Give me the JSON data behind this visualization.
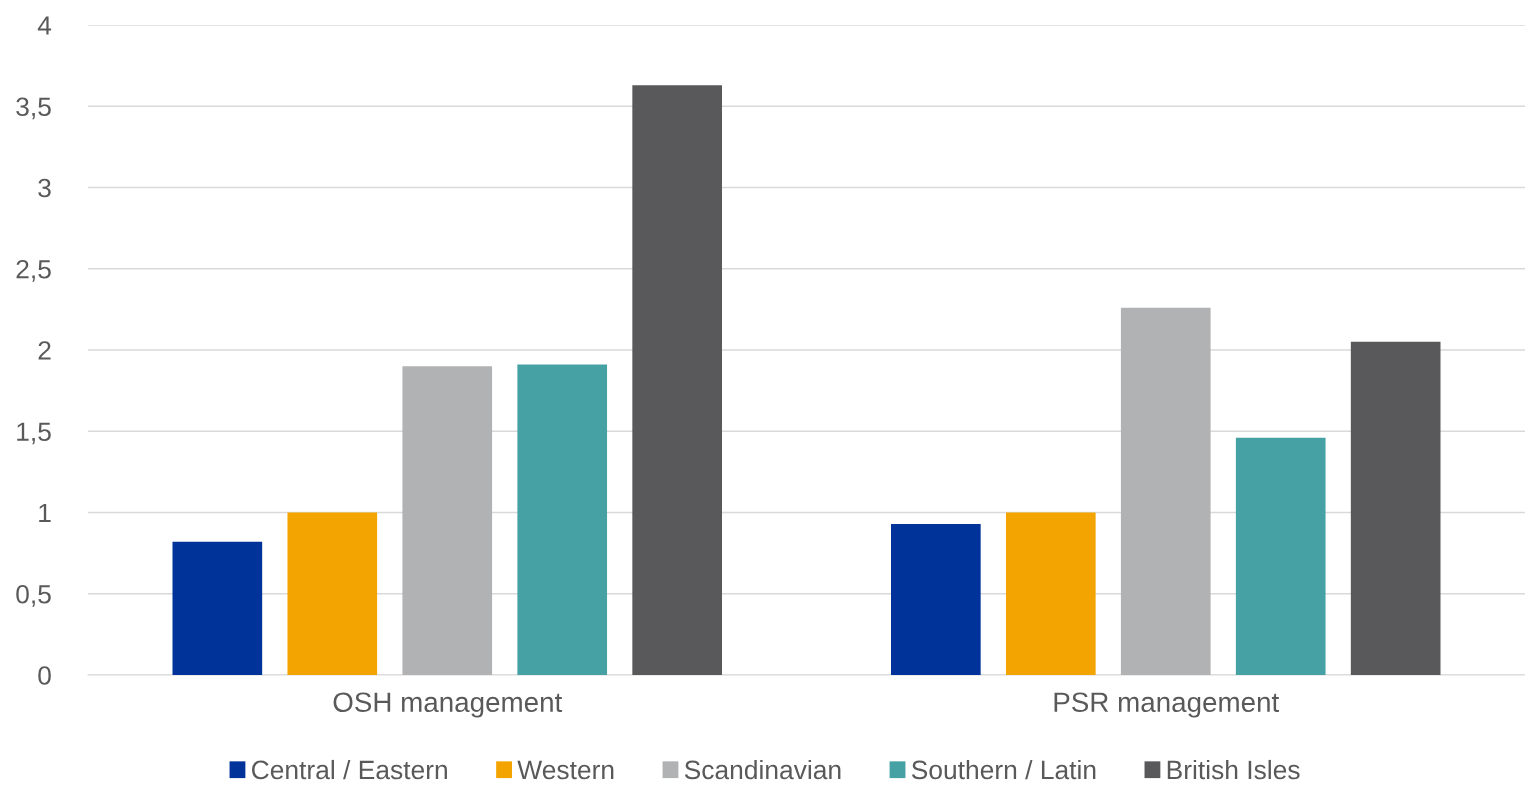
{
  "chart_data": {
    "type": "bar",
    "categories": [
      "OSH management",
      "PSR management"
    ],
    "series": [
      {
        "name": "Central / Eastern",
        "color": "#003399",
        "values": [
          0.82,
          0.93
        ]
      },
      {
        "name": "Western",
        "color": "#f4a400",
        "values": [
          1.0,
          1.0
        ]
      },
      {
        "name": "Scandinavian",
        "color": "#b1b2b4",
        "values": [
          1.9,
          2.26
        ]
      },
      {
        "name": "Southern / Latin",
        "color": "#45a1a4",
        "values": [
          1.91,
          1.46
        ]
      },
      {
        "name": "British Isles",
        "color": "#59595b",
        "values": [
          3.63,
          2.05
        ]
      }
    ],
    "ylim": [
      0,
      4
    ],
    "yticks": [
      0,
      {
        "value": 0.5,
        "label": "0,5"
      },
      1,
      {
        "value": 1.5,
        "label": "1,5"
      },
      2,
      {
        "value": 2.5,
        "label": "2,5"
      },
      3,
      {
        "value": 3.5,
        "label": "3,5"
      },
      4
    ],
    "grid": "y",
    "legend": "bottom"
  }
}
